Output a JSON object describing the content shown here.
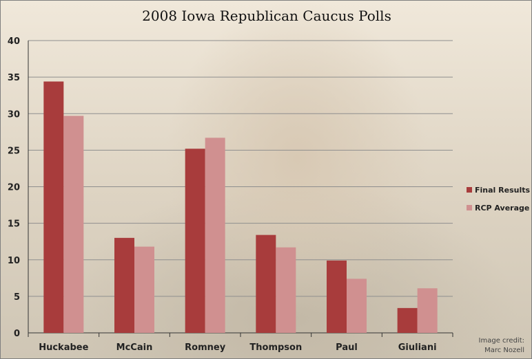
{
  "colors": {
    "final": "#a83c3c",
    "rcp": "#d09090",
    "grid": "#8e8e8e"
  },
  "credit": {
    "line1": "Image credit:",
    "line2": "Marc Nozell"
  },
  "chart_data": {
    "type": "bar",
    "title": "2008 Iowa Republican Caucus Polls",
    "categories": [
      "Huckabee",
      "McCain",
      "Romney",
      "Thompson",
      "Paul",
      "Giuliani"
    ],
    "series": [
      {
        "name": "Final Results",
        "values": [
          34.4,
          13.0,
          25.2,
          13.4,
          9.9,
          3.4
        ]
      },
      {
        "name": "RCP Average",
        "values": [
          29.7,
          11.8,
          26.7,
          11.7,
          7.4,
          6.1
        ]
      }
    ],
    "ylim": [
      0,
      40
    ],
    "yticks": [
      0,
      5,
      10,
      15,
      20,
      25,
      30,
      35,
      40
    ],
    "grid": true,
    "legend": "right"
  }
}
